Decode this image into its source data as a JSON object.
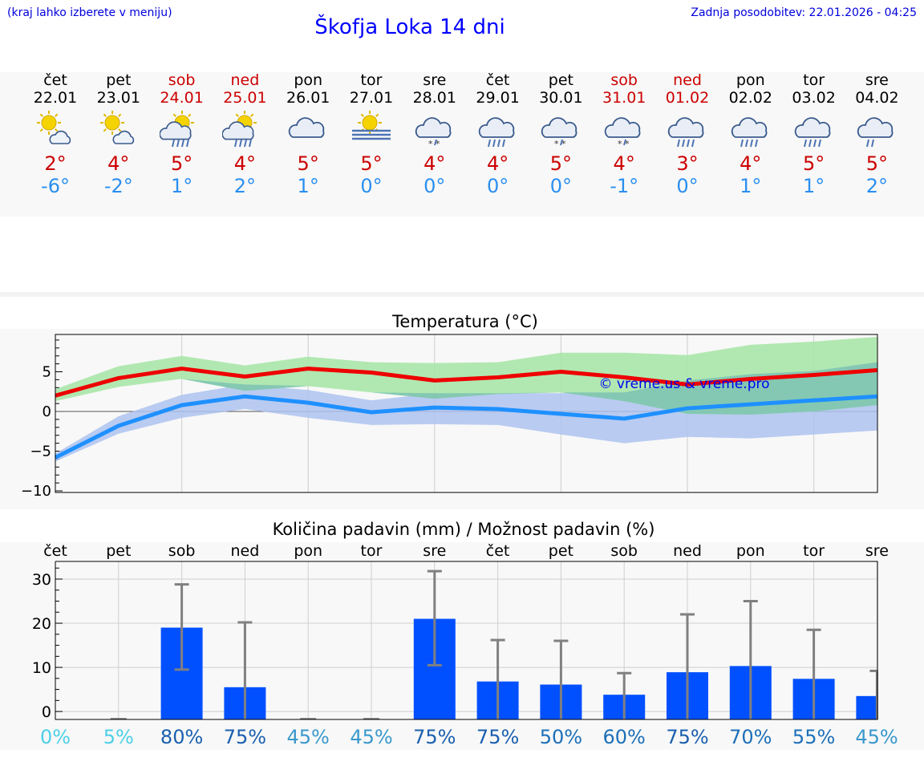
{
  "header": {
    "menu_hint": "(kraj lahko izberete v meniju)",
    "title": "Škofja Loka 14 dni",
    "last_update": "Zadnja posodobitev: 22.01.2026 - 04:25"
  },
  "colors": {
    "max_line": "#ee0000",
    "min_line": "#1e90ff",
    "max_band": "#a8e6a8",
    "min_band": "#aec3f0",
    "overlap_band": "#7ac0b4",
    "bar": "#0050ff",
    "error_bar": "#808080",
    "weekend_text": "#cc0000",
    "title_blue": "#0000ff"
  },
  "days": [
    {
      "name": "čet",
      "date": "22.01",
      "weekend": false,
      "icon": "sun-cloud-icon",
      "tmax": "2°",
      "tmin": "-6°"
    },
    {
      "name": "pet",
      "date": "23.01",
      "weekend": false,
      "icon": "sun-cloud-icon",
      "tmax": "4°",
      "tmin": "-2°"
    },
    {
      "name": "sob",
      "date": "24.01",
      "weekend": true,
      "icon": "sun-cloud-rain-icon",
      "tmax": "5°",
      "tmin": "1°"
    },
    {
      "name": "ned",
      "date": "25.01",
      "weekend": true,
      "icon": "sun-cloud-rain-icon",
      "tmax": "4°",
      "tmin": "2°"
    },
    {
      "name": "pon",
      "date": "26.01",
      "weekend": false,
      "icon": "cloud-icon",
      "tmax": "5°",
      "tmin": "1°"
    },
    {
      "name": "tor",
      "date": "27.01",
      "weekend": false,
      "icon": "sun-fog-icon",
      "tmax": "5°",
      "tmin": "0°"
    },
    {
      "name": "sre",
      "date": "28.01",
      "weekend": false,
      "icon": "cloud-snow-icon",
      "tmax": "4°",
      "tmin": "0°"
    },
    {
      "name": "čet",
      "date": "29.01",
      "weekend": false,
      "icon": "cloud-rain-icon",
      "tmax": "4°",
      "tmin": "0°"
    },
    {
      "name": "pet",
      "date": "30.01",
      "weekend": false,
      "icon": "cloud-snow-icon",
      "tmax": "5°",
      "tmin": "0°"
    },
    {
      "name": "sob",
      "date": "31.01",
      "weekend": true,
      "icon": "cloud-snow-icon",
      "tmax": "4°",
      "tmin": "-1°"
    },
    {
      "name": "ned",
      "date": "01.02",
      "weekend": true,
      "icon": "cloud-rain-icon",
      "tmax": "3°",
      "tmin": "0°"
    },
    {
      "name": "pon",
      "date": "02.02",
      "weekend": false,
      "icon": "cloud-rain-icon",
      "tmax": "4°",
      "tmin": "1°"
    },
    {
      "name": "tor",
      "date": "03.02",
      "weekend": false,
      "icon": "cloud-rain-icon",
      "tmax": "5°",
      "tmin": "1°"
    },
    {
      "name": "sre",
      "date": "04.02",
      "weekend": false,
      "icon": "cloud-light-rain-icon",
      "tmax": "5°",
      "tmin": "2°"
    }
  ],
  "chart_data": [
    {
      "type": "line",
      "title": "Temperatura (°C)",
      "watermark": "© vreme.us & vreme.pro",
      "x": [
        0,
        1,
        2,
        3,
        4,
        5,
        6,
        7,
        8,
        9,
        10,
        11,
        12,
        13
      ],
      "ylim": [
        -10.2,
        9.7
      ],
      "yticks": [
        -10,
        -5,
        0,
        5
      ],
      "ytick_labels": [
        "−10",
        "−5",
        "0",
        "5"
      ],
      "grid": true,
      "series": [
        {
          "name": "max",
          "values": [
            2,
            4.2,
            5.4,
            4.4,
            5.4,
            4.9,
            3.9,
            4.3,
            5,
            4.3,
            3.4,
            4.1,
            4.6,
            5.2
          ],
          "band_low": [
            1.3,
            3.1,
            4.1,
            2.6,
            3.2,
            2.4,
            1.6,
            2.2,
            2.4,
            1.3,
            -0.3,
            -0.4,
            0,
            0.8
          ],
          "band_high": [
            2.8,
            5.7,
            7,
            5.8,
            6.9,
            6.2,
            6.1,
            6.2,
            7.4,
            7.4,
            7.1,
            8.4,
            8.8,
            9.4
          ]
        },
        {
          "name": "min",
          "values": [
            -5.8,
            -1.8,
            0.8,
            1.9,
            1.1,
            -0.1,
            0.5,
            0.3,
            -0.3,
            -0.9,
            0.4,
            0.9,
            1.4,
            1.9
          ],
          "band_low": [
            -6.3,
            -2.8,
            -0.8,
            0.3,
            -0.8,
            -1.7,
            -1.6,
            -1.7,
            -2.9,
            -4,
            -3.2,
            -3.4,
            -2.9,
            -2.4
          ],
          "band_high": [
            -5.3,
            -0.6,
            2.1,
            3.4,
            2.7,
            1.4,
            2.3,
            2.3,
            2.3,
            2.4,
            3.9,
            4.7,
            5.1,
            6.2
          ]
        }
      ]
    },
    {
      "type": "bar",
      "title": "Količina padavin (mm) / Možnost padavin (%)",
      "categories": [
        "čet",
        "pet",
        "sob",
        "ned",
        "pon",
        "tor",
        "sre",
        "čet",
        "pet",
        "sob",
        "ned",
        "pon",
        "tor",
        "sre"
      ],
      "ylim": [
        -1.8,
        34
      ],
      "yticks": [
        0,
        10,
        20,
        30
      ],
      "ytick_labels": [
        "0",
        "10",
        "20",
        "30"
      ],
      "grid": true,
      "values": [
        0,
        0,
        19,
        5.5,
        0,
        0,
        21,
        6.8,
        6.1,
        3.8,
        8.9,
        10.3,
        7.4,
        3.5
      ],
      "error_low": [
        0,
        0,
        9.5,
        0,
        0,
        0,
        10.5,
        0,
        0,
        0,
        0,
        0,
        0,
        0
      ],
      "error_high": [
        0,
        0,
        28.8,
        20.2,
        0,
        0,
        31.8,
        16.2,
        16,
        8.7,
        22,
        25,
        18.5,
        9.2
      ],
      "probability": [
        0,
        5,
        80,
        75,
        45,
        45,
        75,
        75,
        50,
        60,
        75,
        70,
        55,
        45
      ],
      "probability_labels": [
        "0%",
        "5%",
        "80%",
        "75%",
        "45%",
        "45%",
        "75%",
        "75%",
        "50%",
        "60%",
        "75%",
        "70%",
        "55%",
        "45%"
      ]
    }
  ]
}
